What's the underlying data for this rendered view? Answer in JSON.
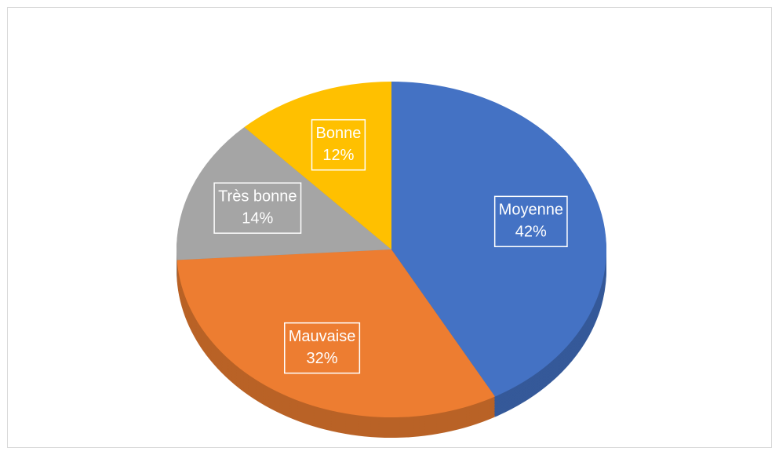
{
  "chart_data": {
    "type": "pie",
    "categories": [
      "Moyenne",
      "Mauvaise",
      "Très bonne",
      "Bonne"
    ],
    "values": [
      42,
      32,
      14,
      12
    ],
    "value_labels": [
      "42%",
      "32%",
      "14%",
      "12%"
    ],
    "colors": [
      "#4472c4",
      "#ed7d31",
      "#a5a5a5",
      "#ffc000"
    ]
  }
}
